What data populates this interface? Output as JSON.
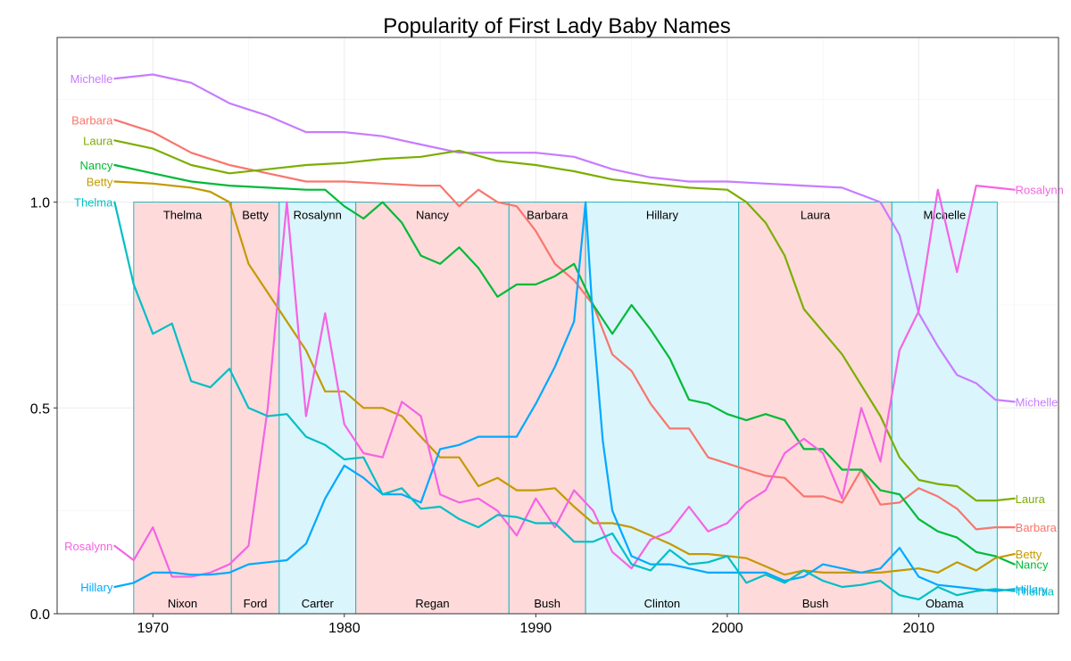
{
  "chart_data": {
    "type": "line",
    "title": "Popularity of First Lady Baby Names",
    "xlabel": "",
    "ylabel": "",
    "xlim": [
      1965,
      2017.3
    ],
    "ylim": [
      0,
      1.4
    ],
    "x_ticks": [
      1970,
      1980,
      1990,
      2000,
      2010
    ],
    "x_tick_labels": [
      "1970",
      "1980",
      "1990",
      "2000",
      "2010"
    ],
    "y_ticks": [
      0.0,
      0.5,
      1.0
    ],
    "y_tick_labels": [
      "0.0",
      "0.5",
      "1.0"
    ],
    "grid": true,
    "terms": [
      {
        "start": 1969.0,
        "end": 1974.1,
        "president": "Nixon",
        "first_lady": "Thelma",
        "color": "#FFDADB"
      },
      {
        "start": 1974.1,
        "end": 1976.6,
        "president": "Ford",
        "first_lady": "Betty",
        "color": "#FFDADB"
      },
      {
        "start": 1976.6,
        "end": 1980.6,
        "president": "Carter",
        "first_lady": "Rosalynn",
        "color": "#DAF5FC"
      },
      {
        "start": 1980.6,
        "end": 1988.6,
        "president": "Regan",
        "first_lady": "Nancy",
        "color": "#FFDADB"
      },
      {
        "start": 1988.6,
        "end": 1992.6,
        "president": "Bush",
        "first_lady": "Barbara",
        "color": "#FFDADB"
      },
      {
        "start": 1992.6,
        "end": 2000.6,
        "president": "Clinton",
        "first_lady": "Hillary",
        "color": "#DAF5FC"
      },
      {
        "start": 2000.6,
        "end": 2008.6,
        "president": "Bush",
        "first_lady": "Laura",
        "color": "#FFDADB"
      },
      {
        "start": 2008.6,
        "end": 2014.1,
        "president": "Obama",
        "first_lady": "Michelle",
        "color": "#DAF5FC"
      }
    ],
    "term_border_color": "#23B5BC",
    "series": [
      {
        "name": "Michelle",
        "color": "#C77CFF",
        "offset": 0.3,
        "start_label": "Michelle",
        "end_label": "Michelle",
        "x": [
          1968,
          1970,
          1972,
          1974,
          1976,
          1978,
          1980,
          1982,
          1984,
          1986,
          1988,
          1990,
          1992,
          1994,
          1996,
          1998,
          2000,
          2002,
          2004,
          2006,
          2008,
          2009,
          2010,
          2011,
          2012,
          2013,
          2014,
          2015
        ],
        "y": [
          1.0,
          1.01,
          0.99,
          0.94,
          0.91,
          0.87,
          0.87,
          0.86,
          0.84,
          0.82,
          0.82,
          0.82,
          0.81,
          0.78,
          0.76,
          0.75,
          0.75,
          0.745,
          0.74,
          0.735,
          0.7,
          0.62,
          0.43,
          0.35,
          0.28,
          0.26,
          0.22,
          0.215
        ]
      },
      {
        "name": "Barbara",
        "color": "#F8766D",
        "offset": 0.2,
        "start_label": "Barbara",
        "end_label": "Barbara",
        "x": [
          1968,
          1970,
          1972,
          1974,
          1976,
          1978,
          1980,
          1982,
          1984,
          1985,
          1986,
          1987,
          1988,
          1989,
          1990,
          1991,
          1992,
          1993,
          1994,
          1995,
          1996,
          1997,
          1998,
          1999,
          2000,
          2001,
          2002,
          2003,
          2004,
          2005,
          2006,
          2007,
          2008,
          2009,
          2010,
          2011,
          2012,
          2013,
          2014,
          2015
        ],
        "y": [
          1.0,
          0.97,
          0.92,
          0.89,
          0.87,
          0.85,
          0.85,
          0.845,
          0.84,
          0.84,
          0.79,
          0.83,
          0.8,
          0.79,
          0.73,
          0.65,
          0.61,
          0.55,
          0.43,
          0.39,
          0.31,
          0.25,
          0.25,
          0.18,
          0.165,
          0.15,
          0.135,
          0.13,
          0.085,
          0.085,
          0.07,
          0.15,
          0.065,
          0.07,
          0.105,
          0.085,
          0.055,
          0.005,
          0.01,
          0.01
        ]
      },
      {
        "name": "Laura",
        "color": "#7CAE00",
        "offset": 0.15,
        "start_label": "Laura",
        "end_label": "Laura",
        "x": [
          1968,
          1970,
          1972,
          1974,
          1976,
          1978,
          1980,
          1982,
          1984,
          1986,
          1988,
          1990,
          1992,
          1994,
          1996,
          1998,
          2000,
          2001,
          2002,
          2003,
          2004,
          2006,
          2008,
          2009,
          2010,
          2011,
          2012,
          2013,
          2014,
          2015
        ],
        "y": [
          1.0,
          0.98,
          0.94,
          0.92,
          0.93,
          0.94,
          0.945,
          0.955,
          0.96,
          0.975,
          0.95,
          0.94,
          0.925,
          0.905,
          0.895,
          0.885,
          0.88,
          0.85,
          0.8,
          0.72,
          0.59,
          0.48,
          0.33,
          0.23,
          0.175,
          0.165,
          0.16,
          0.125,
          0.125,
          0.13
        ]
      },
      {
        "name": "Nancy",
        "color": "#00BA38",
        "offset": 0.09,
        "start_label": "Nancy",
        "end_label": "Nancy",
        "x": [
          1968,
          1970,
          1972,
          1974,
          1976,
          1978,
          1979,
          1980,
          1981,
          1982,
          1983,
          1984,
          1985,
          1986,
          1987,
          1988,
          1989,
          1990,
          1991,
          1992,
          1993,
          1994,
          1995,
          1996,
          1997,
          1998,
          1999,
          2000,
          2001,
          2002,
          2003,
          2004,
          2005,
          2006,
          2007,
          2008,
          2009,
          2010,
          2011,
          2012,
          2013,
          2014,
          2015
        ],
        "y": [
          1.0,
          0.98,
          0.96,
          0.95,
          0.945,
          0.94,
          0.94,
          0.9,
          0.87,
          0.91,
          0.86,
          0.78,
          0.76,
          0.8,
          0.75,
          0.68,
          0.71,
          0.71,
          0.73,
          0.76,
          0.66,
          0.59,
          0.66,
          0.6,
          0.53,
          0.43,
          0.42,
          0.395,
          0.38,
          0.395,
          0.38,
          0.31,
          0.31,
          0.26,
          0.26,
          0.21,
          0.2,
          0.14,
          0.11,
          0.095,
          0.06,
          0.05,
          0.03
        ]
      },
      {
        "name": "Betty",
        "color": "#C49A00",
        "offset": 0.05,
        "start_label": "Betty",
        "end_label": "Betty",
        "x": [
          1968,
          1970,
          1972,
          1973,
          1974,
          1975,
          1976,
          1977,
          1978,
          1979,
          1980,
          1981,
          1982,
          1983,
          1984,
          1985,
          1986,
          1987,
          1988,
          1989,
          1990,
          1991,
          1992,
          1993,
          1994,
          1995,
          1996,
          1997,
          1998,
          1999,
          2000,
          2001,
          2002,
          2003,
          2004,
          2005,
          2006,
          2007,
          2008,
          2009,
          2010,
          2011,
          2012,
          2013,
          2014,
          2015
        ],
        "y": [
          1.0,
          0.995,
          0.985,
          0.975,
          0.95,
          0.8,
          0.73,
          0.66,
          0.59,
          0.49,
          0.49,
          0.45,
          0.45,
          0.43,
          0.38,
          0.33,
          0.33,
          0.26,
          0.28,
          0.25,
          0.25,
          0.255,
          0.21,
          0.17,
          0.17,
          0.16,
          0.14,
          0.12,
          0.095,
          0.095,
          0.09,
          0.085,
          0.065,
          0.045,
          0.055,
          0.05,
          0.05,
          0.05,
          0.05,
          0.055,
          0.06,
          0.05,
          0.075,
          0.055,
          0.085,
          0.095
        ]
      },
      {
        "name": "Rosalynn",
        "color": "#F564E3",
        "offset": 0.0,
        "start_label": "Rosalynn",
        "end_label": "Rosalynn",
        "x": [
          1968,
          1969,
          1970,
          1971,
          1972,
          1973,
          1974,
          1975,
          1976,
          1977,
          1978,
          1979,
          1980,
          1981,
          1982,
          1983,
          1984,
          1985,
          1986,
          1987,
          1988,
          1989,
          1990,
          1991,
          1992,
          1993,
          1994,
          1995,
          1996,
          1997,
          1998,
          1999,
          2000,
          2001,
          2002,
          2003,
          2004,
          2005,
          2006,
          2007,
          2008,
          2009,
          2010,
          2011,
          2012,
          2013,
          2014,
          2015
        ],
        "y": [
          0.165,
          0.13,
          0.21,
          0.09,
          0.09,
          0.1,
          0.12,
          0.165,
          0.5,
          1.0,
          0.48,
          0.73,
          0.46,
          0.39,
          0.38,
          0.515,
          0.48,
          0.29,
          0.27,
          0.28,
          0.25,
          0.19,
          0.28,
          0.21,
          0.3,
          0.25,
          0.15,
          0.11,
          0.18,
          0.2,
          0.26,
          0.2,
          0.22,
          0.27,
          0.3,
          0.39,
          0.425,
          0.39,
          0.28,
          0.5,
          0.37,
          0.64,
          0.735,
          1.03,
          0.83,
          1.04,
          1.035,
          1.03
        ]
      },
      {
        "name": "Hillary",
        "color": "#00A9FF",
        "offset": 0.0,
        "start_label": "Hillary",
        "end_label": "Hillary",
        "x": [
          1968,
          1969,
          1970,
          1971,
          1972,
          1973,
          1974,
          1975,
          1976,
          1977,
          1978,
          1979,
          1980,
          1981,
          1982,
          1983,
          1984,
          1985,
          1986,
          1987,
          1988,
          1989,
          1990,
          1991,
          1992,
          1992.6,
          1993,
          1993.5,
          1994,
          1995,
          1996,
          1997,
          1998,
          1999,
          2000,
          2001,
          2002,
          2003,
          2004,
          2005,
          2006,
          2007,
          2008,
          2009,
          2010,
          2011,
          2012,
          2013,
          2014,
          2015
        ],
        "y": [
          0.065,
          0.075,
          0.1,
          0.1,
          0.095,
          0.095,
          0.1,
          0.12,
          0.125,
          0.13,
          0.17,
          0.28,
          0.36,
          0.33,
          0.29,
          0.29,
          0.27,
          0.4,
          0.41,
          0.43,
          0.43,
          0.43,
          0.51,
          0.6,
          0.71,
          1.0,
          0.7,
          0.42,
          0.25,
          0.14,
          0.12,
          0.12,
          0.11,
          0.1,
          0.1,
          0.1,
          0.1,
          0.08,
          0.09,
          0.12,
          0.11,
          0.1,
          0.11,
          0.16,
          0.09,
          0.07,
          0.065,
          0.06,
          0.055,
          0.06
        ]
      },
      {
        "name": "Thelma",
        "color": "#00BFC4",
        "offset": 0.0,
        "start_label": "Thelma",
        "end_label": "Thelma",
        "x": [
          1968,
          1969,
          1970,
          1971,
          1972,
          1973,
          1974,
          1975,
          1976,
          1977,
          1978,
          1979,
          1980,
          1981,
          1982,
          1983,
          1984,
          1985,
          1986,
          1987,
          1988,
          1989,
          1990,
          1991,
          1992,
          1993,
          1994,
          1995,
          1996,
          1997,
          1998,
          1999,
          2000,
          2001,
          2002,
          2003,
          2004,
          2005,
          2006,
          2007,
          2008,
          2009,
          2010,
          2011,
          2012,
          2013,
          2014,
          2015
        ],
        "y": [
          1.0,
          0.8,
          0.68,
          0.705,
          0.565,
          0.55,
          0.595,
          0.5,
          0.48,
          0.485,
          0.43,
          0.41,
          0.375,
          0.38,
          0.29,
          0.305,
          0.255,
          0.26,
          0.23,
          0.21,
          0.24,
          0.235,
          0.22,
          0.22,
          0.175,
          0.175,
          0.195,
          0.12,
          0.105,
          0.155,
          0.12,
          0.125,
          0.14,
          0.075,
          0.095,
          0.075,
          0.105,
          0.08,
          0.065,
          0.07,
          0.08,
          0.045,
          0.035,
          0.065,
          0.045,
          0.055,
          0.06,
          0.055
        ]
      }
    ]
  }
}
